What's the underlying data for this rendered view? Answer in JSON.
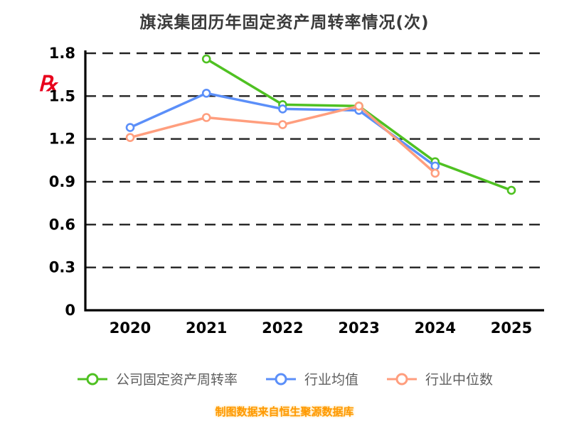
{
  "watermark": "℞",
  "caption": "制图数据来自恒生聚源数据库",
  "legend": [
    {
      "label": "公司固定资产周转率",
      "color": "#4fc122"
    },
    {
      "label": "行业均值",
      "color": "#5b8ff9"
    },
    {
      "label": "行业中位数",
      "color": "#ff9e7e"
    }
  ],
  "chart_data": {
    "type": "line",
    "title": "旗滨集团历年固定资产周转率情况(次)",
    "x": [
      "2020",
      "2021",
      "2022",
      "2023",
      "2024",
      "2025"
    ],
    "series": [
      {
        "name": "公司固定资产周转率",
        "color": "#4fc122",
        "values": [
          null,
          1.76,
          1.44,
          1.43,
          1.04,
          0.84
        ]
      },
      {
        "name": "行业均值",
        "color": "#5b8ff9",
        "values": [
          1.28,
          1.52,
          1.41,
          1.4,
          1.01,
          null
        ]
      },
      {
        "name": "行业中位数",
        "color": "#ff9e7e",
        "values": [
          1.21,
          1.35,
          1.3,
          1.43,
          0.96,
          null
        ]
      }
    ],
    "xlabel": "",
    "ylabel": "",
    "ylim": [
      0,
      1.8
    ],
    "yticks": [
      0,
      0.3,
      0.6,
      0.9,
      1.2,
      1.5,
      1.8
    ],
    "grid": "dashed-horizontal",
    "legend_position": "bottom",
    "axis_color": "#000000",
    "grid_color": "#222222"
  }
}
